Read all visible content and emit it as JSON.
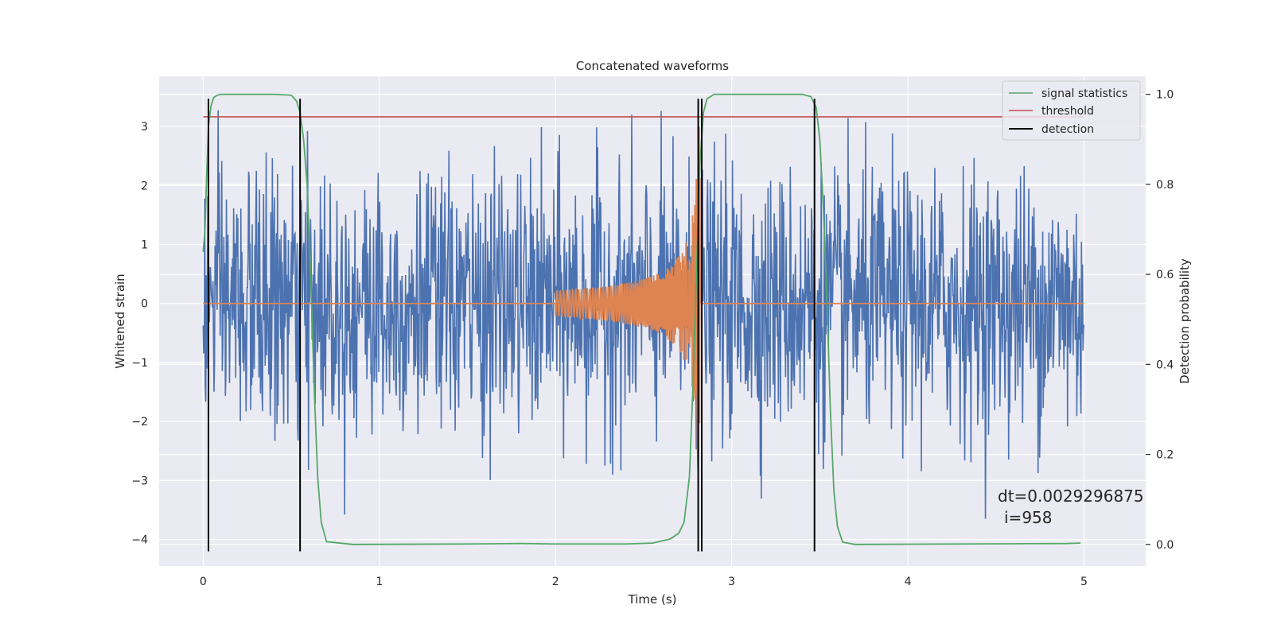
{
  "chart_data": {
    "type": "line",
    "title": "Concatenated waveforms",
    "xlabel": "Time (s)",
    "ylabel": "Whitened strain",
    "y2label": "Detection probability",
    "xlim": [
      -0.25,
      5.35
    ],
    "ylim": [
      -4.45,
      3.85
    ],
    "y2lim": [
      -0.048,
      1.04
    ],
    "xticks": [
      0,
      1,
      2,
      3,
      4,
      5
    ],
    "yticks": [
      -4,
      -3,
      -2,
      -1,
      0,
      1,
      2,
      3
    ],
    "y2ticks": [
      0.0,
      0.2,
      0.4,
      0.6,
      0.8,
      1.0
    ],
    "xtick_labels": [
      "0",
      "1",
      "2",
      "3",
      "4",
      "5"
    ],
    "ytick_labels": [
      "−4",
      "−3",
      "−2",
      "−1",
      "0",
      "1",
      "2",
      "3"
    ],
    "y2tick_labels": [
      "0.0",
      "0.2",
      "0.4",
      "0.6",
      "0.8",
      "1.0"
    ],
    "grid": true,
    "background": "#eaeaf2",
    "legend_position": "top-right",
    "legend": [
      {
        "label": "signal statistics",
        "color": "#55a868"
      },
      {
        "label": "threshold",
        "color": "#c44e52"
      },
      {
        "label": "detection",
        "color": "#000000"
      }
    ],
    "series": [
      {
        "kind": "noise",
        "color": "#4c72b0",
        "x_range": [
          0,
          5
        ],
        "typical_amplitude": 1.1,
        "peak_min": -4.2,
        "peak_max": 3.45
      },
      {
        "kind": "chirp",
        "color": "#dd8452",
        "start": 2.0,
        "end": 2.82,
        "start_amplitude": 0.22,
        "end_amplitude": 3.0
      },
      {
        "name": "signal statistics",
        "axis": "right",
        "color": "#55a868",
        "points": [
          [
            0,
            0.65
          ],
          [
            0.01,
            0.7
          ],
          [
            0.02,
            0.82
          ],
          [
            0.03,
            0.93
          ],
          [
            0.045,
            0.975
          ],
          [
            0.06,
            0.993
          ],
          [
            0.08,
            0.998
          ],
          [
            0.1,
            1.0
          ],
          [
            0.4,
            1.0
          ],
          [
            0.5,
            0.998
          ],
          [
            0.53,
            0.985
          ],
          [
            0.55,
            0.96
          ],
          [
            0.57,
            0.9
          ],
          [
            0.59,
            0.8
          ],
          [
            0.61,
            0.6
          ],
          [
            0.63,
            0.35
          ],
          [
            0.65,
            0.15
          ],
          [
            0.67,
            0.05
          ],
          [
            0.7,
            0.006
          ],
          [
            0.85,
            0.0
          ],
          [
            1.5,
            0.001
          ],
          [
            1.8,
            0.002
          ],
          [
            2.0,
            0.001
          ],
          [
            2.4,
            0.001
          ],
          [
            2.55,
            0.003
          ],
          [
            2.65,
            0.012
          ],
          [
            2.7,
            0.025
          ],
          [
            2.73,
            0.05
          ],
          [
            2.76,
            0.15
          ],
          [
            2.78,
            0.35
          ],
          [
            2.8,
            0.6
          ],
          [
            2.82,
            0.85
          ],
          [
            2.84,
            0.96
          ],
          [
            2.86,
            0.99
          ],
          [
            2.9,
            1.0
          ],
          [
            3.4,
            1.0
          ],
          [
            3.45,
            0.995
          ],
          [
            3.48,
            0.97
          ],
          [
            3.5,
            0.9
          ],
          [
            3.52,
            0.75
          ],
          [
            3.54,
            0.55
          ],
          [
            3.56,
            0.3
          ],
          [
            3.58,
            0.12
          ],
          [
            3.6,
            0.04
          ],
          [
            3.63,
            0.005
          ],
          [
            3.7,
            0.0
          ],
          [
            4.9,
            0.002
          ],
          [
            4.98,
            0.003
          ]
        ]
      },
      {
        "name": "threshold",
        "axis": "right",
        "color": "#c44e52",
        "value": 0.95,
        "x_range": [
          0,
          5
        ]
      },
      {
        "name": "detection",
        "color": "#000000",
        "x": [
          0.03,
          0.55,
          2.81,
          2.83,
          3.47
        ],
        "y_range": [
          -4.2,
          3.47
        ]
      }
    ],
    "annotation": {
      "dt": "dt=0.0029296875",
      "i": "i=958",
      "x": 4.5,
      "y": -3.45
    }
  }
}
